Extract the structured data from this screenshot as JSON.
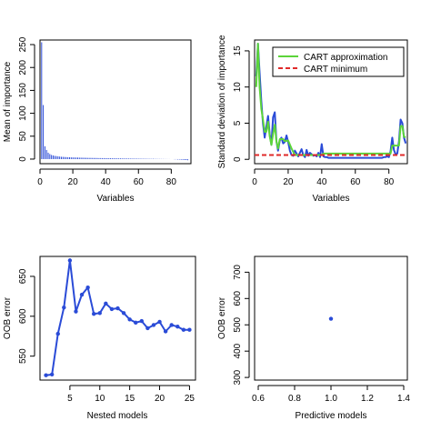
{
  "chart_data": [
    {
      "type": "bar",
      "xlabel": "Variables",
      "ylabel": "Mean of importance",
      "xlim": [
        0,
        92
      ],
      "ylim": [
        -10,
        260
      ],
      "xticks": [
        0,
        20,
        40,
        60,
        80
      ],
      "yticks": [
        0,
        50,
        100,
        150,
        200,
        250
      ],
      "grid": false,
      "color": "#2a4bd7",
      "values": [
        255,
        118,
        28,
        20,
        14,
        11,
        9,
        8,
        7,
        6.5,
        6,
        5.5,
        5,
        4.8,
        4.5,
        4.3,
        4.1,
        4,
        3.8,
        3.6,
        3.5,
        3.4,
        3.3,
        3.2,
        3.1,
        3,
        2.9,
        2.8,
        2.7,
        2.6,
        2.6,
        2.5,
        2.4,
        2.4,
        2.3,
        2.2,
        2.2,
        2.1,
        2.1,
        2,
        2,
        1.9,
        1.9,
        1.8,
        1.8,
        1.7,
        1.7,
        1.6,
        1.6,
        1.5,
        1.5,
        1.4,
        1.4,
        1.3,
        1.3,
        1.2,
        1.2,
        1.1,
        1.1,
        1,
        1,
        0.9,
        0.9,
        0.8,
        0.8,
        0.7,
        0.7,
        0.6,
        0.6,
        0.5,
        0.5,
        0.4,
        0.4,
        0.3,
        0.3,
        0.2,
        0.2,
        0.1,
        0.1,
        0,
        0,
        -0.5,
        -0.5,
        -1,
        -1,
        -1.5,
        -1.5,
        -2,
        -2,
        -2.5
      ]
    },
    {
      "type": "line",
      "xlabel": "Variables",
      "ylabel": "Standard deviation of importance",
      "xlim": [
        0,
        91
      ],
      "ylim": [
        -0.6,
        16.5
      ],
      "xticks": [
        0,
        20,
        40,
        60,
        80
      ],
      "yticks": [
        0,
        5,
        10,
        15
      ],
      "grid": false,
      "legend_position": "top-right",
      "series": [
        {
          "name": "",
          "color": "#2a4bd7",
          "x": [
            1,
            2,
            3,
            4,
            5,
            6,
            7,
            8,
            9,
            10,
            11,
            12,
            13,
            14,
            15,
            16,
            17,
            18,
            19,
            20,
            21,
            22,
            23,
            24,
            25,
            26,
            27,
            28,
            29,
            30,
            31,
            32,
            33,
            34,
            35,
            36,
            37,
            38,
            39,
            40,
            41,
            42,
            43,
            44,
            45,
            46,
            47,
            48,
            49,
            50,
            51,
            52,
            53,
            54,
            55,
            56,
            57,
            58,
            59,
            60,
            61,
            62,
            63,
            64,
            65,
            66,
            67,
            68,
            69,
            70,
            71,
            72,
            73,
            74,
            75,
            76,
            77,
            78,
            79,
            80,
            81,
            82,
            83,
            84,
            85,
            86,
            87,
            88,
            89,
            90
          ],
          "values": [
            11.5,
            16,
            12,
            8,
            5,
            3,
            4.5,
            6,
            3.5,
            2,
            5.8,
            6.5,
            2.5,
            1.2,
            2.6,
            3,
            2.2,
            2.4,
            3.3,
            2.4,
            1.2,
            0.6,
            0.5,
            1.2,
            0.8,
            0.4,
            0.9,
            1.4,
            0.6,
            0.3,
            1.3,
            0.5,
            0.9,
            0.7,
            0.5,
            0.6,
            0.4,
            0.9,
            0.3,
            2.1,
            0.4,
            0.3,
            0.3,
            0.2,
            0.2,
            0.2,
            0.2,
            0.2,
            0.2,
            0.2,
            0.2,
            0.2,
            0.2,
            0.2,
            0.2,
            0.2,
            0.2,
            0.2,
            0.2,
            0.2,
            0.2,
            0.2,
            0.2,
            0.2,
            0.2,
            0.2,
            0.2,
            0.2,
            0.2,
            0.2,
            0.2,
            0.2,
            0.2,
            0.2,
            0.2,
            0.2,
            0.3,
            0.3,
            0.4,
            0.3,
            1.1,
            3,
            1.3,
            0.7,
            0.8,
            2.5,
            5.5,
            5,
            3,
            2.2
          ]
        },
        {
          "name": "CART approximation",
          "color": "#5cd43a",
          "x": [
            1,
            2,
            2.5,
            3,
            4,
            5,
            6,
            7,
            8,
            9,
            10,
            11,
            12,
            13,
            14,
            15,
            17,
            18,
            20,
            22,
            24,
            40,
            41,
            81,
            82,
            86,
            87,
            88,
            89,
            90
          ],
          "values": [
            10,
            16,
            13,
            10,
            7,
            5.5,
            3.8,
            3.8,
            5.2,
            3.2,
            2,
            3.5,
            4.8,
            2.5,
            1.5,
            2.8,
            2.8,
            2.5,
            2.6,
            1.5,
            0.6,
            0.6,
            0.8,
            0.8,
            1.9,
            1.9,
            4.6,
            4.6,
            3.1,
            3.1
          ]
        },
        {
          "name": "CART minimum",
          "color": "#e02a2a",
          "dashed": true,
          "x": [
            0,
            91
          ],
          "values": [
            0.6,
            0.6
          ]
        }
      ]
    },
    {
      "type": "line",
      "xlabel": "Nested models",
      "ylabel": "OOB error",
      "xlim": [
        0,
        26
      ],
      "ylim": [
        520,
        675
      ],
      "xticks": [
        5,
        10,
        15,
        20,
        25
      ],
      "yticks": [
        550,
        600,
        650
      ],
      "grid": false,
      "series": [
        {
          "name": "",
          "color": "#2a4bd7",
          "x": [
            1,
            2,
            3,
            4,
            5,
            6,
            7,
            8,
            9,
            10,
            11,
            12,
            13,
            14,
            15,
            16,
            17,
            18,
            19,
            20,
            21,
            22,
            23,
            24,
            25
          ],
          "values": [
            526,
            527,
            578,
            611,
            670,
            606,
            627,
            636,
            603,
            604,
            616,
            609,
            610,
            604,
            596,
            592,
            594,
            585,
            589,
            593,
            581,
            589,
            587,
            583,
            583
          ]
        }
      ]
    },
    {
      "type": "scatter",
      "xlabel": "Predictive models",
      "ylabel": "OOB error",
      "xlim": [
        0.58,
        1.42
      ],
      "ylim": [
        290,
        760
      ],
      "xticks": [
        0.6,
        0.8,
        1.0,
        1.2,
        1.4
      ],
      "xtick_labels": [
        "0.6",
        "0.8",
        "1.0",
        "1.2",
        "1.4"
      ],
      "yticks": [
        300,
        400,
        500,
        600,
        700
      ],
      "grid": false,
      "series": [
        {
          "name": "",
          "color": "#2a4bd7",
          "x": [
            1.0
          ],
          "values": [
            523
          ]
        }
      ]
    }
  ]
}
